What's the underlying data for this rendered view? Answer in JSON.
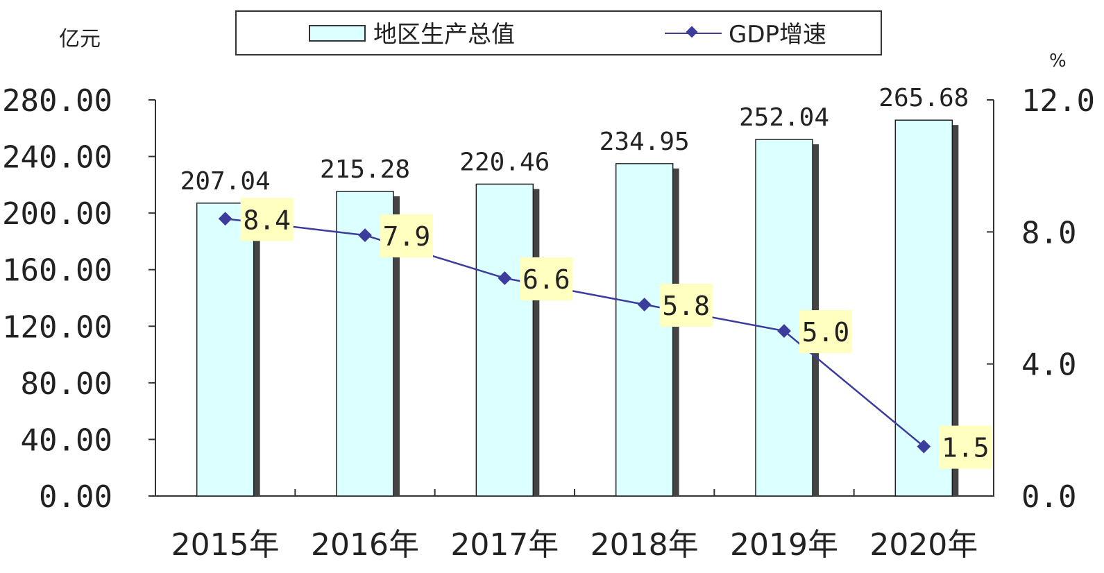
{
  "chart_data": {
    "type": "bar",
    "categories": [
      "2015年",
      "2016年",
      "2017年",
      "2018年",
      "2019年",
      "2020年"
    ],
    "series": [
      {
        "name": "地区生产总值",
        "type": "bar",
        "axis": "left",
        "values": [
          207.04,
          215.28,
          220.46,
          234.95,
          252.04,
          265.68
        ],
        "labels": [
          "207.04",
          "215.28",
          "220.46",
          "234.95",
          "252.04",
          "265.68"
        ],
        "color": "#dcffff"
      },
      {
        "name": "GDP增速",
        "type": "line",
        "axis": "right",
        "values": [
          8.4,
          7.9,
          6.6,
          5.8,
          5.0,
          1.5
        ],
        "labels": [
          "8.4",
          "7.9",
          "6.6",
          "5.8",
          "5.0",
          "1.5"
        ],
        "color": "#3c3c9c"
      }
    ],
    "y_left": {
      "unit": "亿元",
      "ylim": [
        0,
        280
      ],
      "ticks": [
        0,
        40,
        80,
        120,
        160,
        200,
        240,
        280
      ],
      "tick_labels": [
        "0.00",
        "40.00",
        "80.00",
        "120.00",
        "160.00",
        "200.00",
        "240.00",
        "280.00"
      ]
    },
    "y_right": {
      "unit": "%",
      "ylim": [
        0,
        12
      ],
      "ticks": [
        0,
        4,
        8,
        12
      ],
      "tick_labels": [
        "0.0",
        "4.0",
        "8.0",
        "12.0"
      ]
    },
    "legend": {
      "position": "top",
      "items": [
        "地区生产总值",
        "GDP增速"
      ]
    },
    "grid": false,
    "colors": {
      "bar_fill": "#dcffff",
      "bar_shadow": "#444444",
      "line": "#3c3c9c",
      "label_box": "#ffffc0"
    }
  }
}
